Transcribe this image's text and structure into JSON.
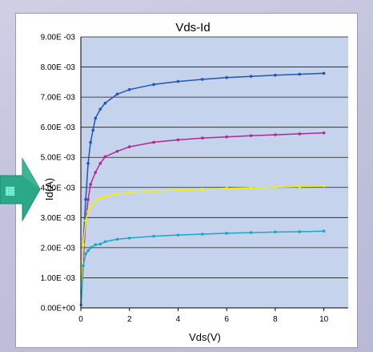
{
  "chart_data": {
    "type": "line",
    "title": "Vds-Id",
    "xlabel": "Vds(V)",
    "ylabel": "Id(A)",
    "xlim": [
      0,
      11
    ],
    "ylim": [
      0,
      0.009
    ],
    "x_ticks": [
      0,
      2,
      4,
      6,
      8,
      10
    ],
    "x_tick_labels": [
      "0",
      "2",
      "4",
      "6",
      "8",
      "10"
    ],
    "y_ticks": [
      0,
      0.001,
      0.002,
      0.003,
      0.004,
      0.005,
      0.006,
      0.007,
      0.008,
      0.009
    ],
    "y_tick_labels": [
      "0.00E+00",
      "1.00E -03",
      "2.00E -03",
      "3.00E -03",
      "4.00E -03",
      "5.00E -03",
      "6.00E -03",
      "7.00E -03",
      "8.00E -03",
      "9.00E -03"
    ],
    "grid": "horizontal",
    "plot_background": "#c5d3ec",
    "series": [
      {
        "color": "#1f56b4",
        "x": [
          0.01,
          0.1,
          0.2,
          0.3,
          0.4,
          0.5,
          0.6,
          0.8,
          1.0,
          1.5,
          2,
          3,
          4,
          5,
          6,
          7,
          8,
          9,
          10
        ],
        "values": [
          0.0001,
          0.0021,
          0.0036,
          0.0048,
          0.0055,
          0.0059,
          0.0063,
          0.0066,
          0.0068,
          0.0071,
          0.00725,
          0.00742,
          0.00752,
          0.00759,
          0.00765,
          0.00769,
          0.00773,
          0.00776,
          0.00779
        ]
      },
      {
        "color": "#b02890",
        "x": [
          0.01,
          0.1,
          0.2,
          0.3,
          0.4,
          0.6,
          0.8,
          1.0,
          1.5,
          2,
          3,
          4,
          5,
          6,
          7,
          8,
          9,
          10
        ],
        "values": [
          0.0001,
          0.0016,
          0.0029,
          0.0036,
          0.0041,
          0.0045,
          0.0048,
          0.00502,
          0.0052,
          0.00535,
          0.0055,
          0.00558,
          0.00564,
          0.00568,
          0.00572,
          0.00575,
          0.00578,
          0.00581
        ]
      },
      {
        "color": "#f4f000",
        "x": [
          0.01,
          0.1,
          0.2,
          0.3,
          0.4,
          0.6,
          0.8,
          1.0,
          1.5,
          2,
          3,
          4,
          5,
          6,
          7,
          8,
          9,
          10
        ],
        "values": [
          0.0001,
          0.0021,
          0.0029,
          0.0032,
          0.00335,
          0.00355,
          0.00365,
          0.0037,
          0.00378,
          0.00383,
          0.00388,
          0.00392,
          0.00395,
          0.00397,
          0.00399,
          0.00401,
          0.00403,
          0.00405
        ]
      },
      {
        "color": "#18a8c8",
        "x": [
          0.01,
          0.1,
          0.2,
          0.3,
          0.4,
          0.6,
          0.8,
          1.0,
          1.5,
          2,
          3,
          4,
          5,
          6,
          7,
          8,
          9,
          10
        ],
        "values": [
          0.0001,
          0.0014,
          0.0018,
          0.0019,
          0.002,
          0.0021,
          0.00212,
          0.0022,
          0.00228,
          0.00232,
          0.00238,
          0.00242,
          0.00245,
          0.00248,
          0.0025,
          0.00252,
          0.00253,
          0.00255
        ]
      }
    ]
  },
  "overlay": {
    "arrow_color": "#2aa888",
    "arrow_glyph": "▦"
  }
}
